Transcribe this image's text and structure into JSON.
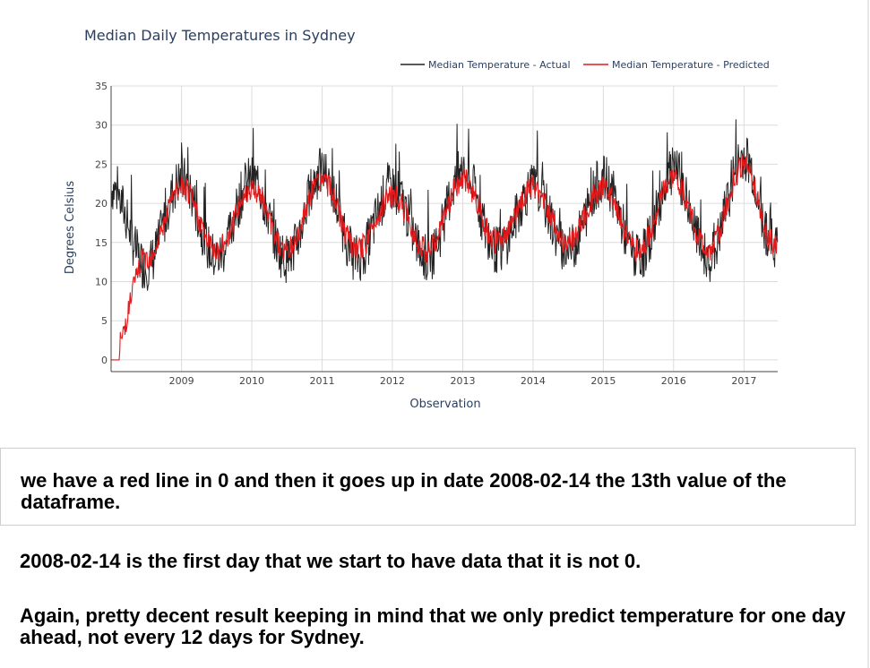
{
  "chart_data": {
    "type": "line",
    "title": "Median Daily Temperatures in Sydney",
    "xlabel": "Observation",
    "ylabel": "Degrees Celsius",
    "x_ticks": [
      "2009",
      "2010",
      "2011",
      "2012",
      "2013",
      "2014",
      "2015",
      "2016",
      "2017"
    ],
    "y_ticks": [
      "0",
      "5",
      "10",
      "15",
      "20",
      "25",
      "30",
      "35"
    ],
    "xlim": [
      "2008-01-01",
      "2017-06-25"
    ],
    "ylim": [
      -1.5,
      35
    ],
    "legend_position": "top-right",
    "grid": true,
    "x_sampled": [
      "2008-01",
      "2008-07",
      "2009-01",
      "2009-07",
      "2010-01",
      "2010-07",
      "2011-01",
      "2011-07",
      "2012-01",
      "2012-07",
      "2013-01",
      "2013-07",
      "2014-01",
      "2014-07",
      "2015-01",
      "2015-07",
      "2016-01",
      "2016-07",
      "2017-01",
      "2017-06"
    ],
    "series": [
      {
        "name": "Median Temperature - Actual",
        "color": "#222222",
        "values": [
          22,
          12,
          23,
          13,
          23,
          13,
          24,
          13,
          22,
          13,
          24,
          14,
          22,
          14,
          23,
          13,
          24,
          13,
          26,
          15
        ]
      },
      {
        "name": "Median Temperature - Predicted",
        "color": "#e31a1c",
        "values": [
          0,
          13,
          22,
          14,
          22,
          14,
          23,
          14,
          21,
          14,
          23,
          15,
          22,
          15,
          22,
          14,
          23,
          14,
          25,
          15
        ]
      }
    ]
  },
  "cells": {
    "cell_1_text": "we have a red line in 0 and then it goes up in date 2008-02-14 the 13th value of the dataframe.",
    "cell_2_text": "2008-02-14 is the first day that we start to have data that it is not 0.",
    "cell_3_text": "Again, pretty decent result keeping in mind that we only predict temperature for one day ahead, not every 12 days for Sydney."
  }
}
